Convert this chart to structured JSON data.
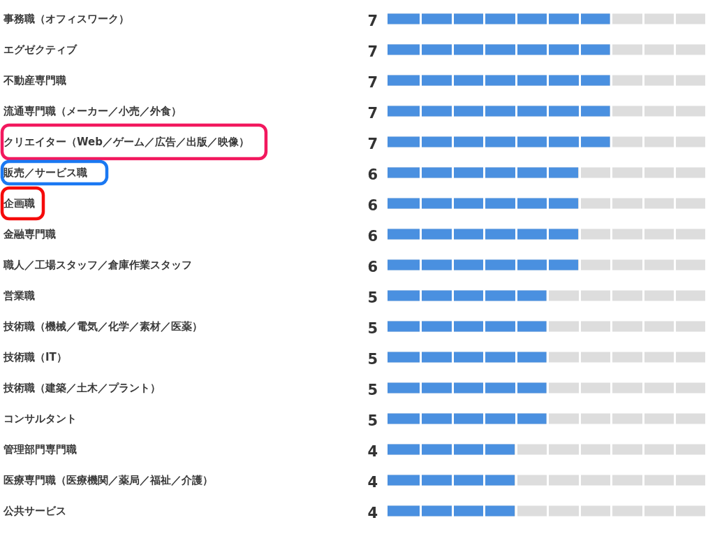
{
  "chart_data": {
    "type": "bar",
    "orientation": "horizontal",
    "categories": [
      "事務職（オフィスワーク）",
      "エグゼクティブ",
      "不動産専門職",
      "流通専門職（メーカー／小売／外食）",
      "クリエイター（Web／ゲーム／広告／出版／映像）",
      "販売／サービス職",
      "企画職",
      "金融専門職",
      "職人／工場スタッフ／倉庫作業スタッフ",
      "営業職",
      "技術職（機械／電気／化学／素材／医薬）",
      "技術職（IT）",
      "技術職（建築／土木／プラント）",
      "コンサルタント",
      "管理部門専門職",
      "医療専門職（医療機関／薬局／福祉／介護）",
      "公共サービス"
    ],
    "values": [
      7,
      7,
      7,
      7,
      7,
      6,
      6,
      6,
      6,
      5,
      5,
      5,
      5,
      5,
      4,
      4,
      4
    ],
    "color": "#4a90e0",
    "xlim": [
      0,
      10
    ],
    "data_labels": true,
    "tick_labels": "y"
  }
}
